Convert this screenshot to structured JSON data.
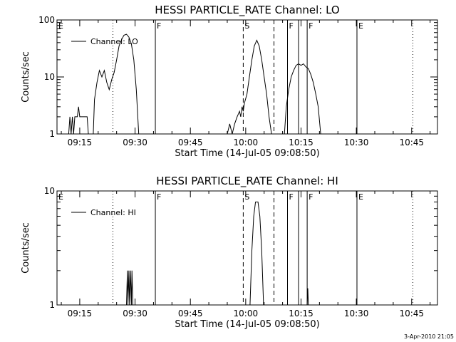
{
  "chart_data": [
    {
      "type": "line",
      "title": "HESSI PARTICLE_RATE Channel: LO",
      "xlabel": "Start Time (14-Jul-05 09:08:50)",
      "ylabel": "Counts/sec",
      "yscale": "log",
      "ylim": [
        1,
        100
      ],
      "yticks": [
        1,
        10,
        100
      ],
      "ytick_labels": [
        "1",
        "10",
        "100"
      ],
      "xlim": [
        "09:08:50",
        "10:52:00"
      ],
      "xticks": [
        "09:15",
        "09:30",
        "09:45",
        "10:00",
        "10:15",
        "10:30",
        "10:45"
      ],
      "legend": {
        "label": "Channel: LO",
        "placement": "top-left"
      },
      "series": [
        {
          "name": "Channel: LO",
          "segments": [
            [
              [
                "09:12:00",
                1
              ],
              [
                "09:12:20",
                2
              ],
              [
                "09:12:40",
                1
              ],
              [
                "09:13:00",
                2
              ],
              [
                "09:13:20",
                1
              ],
              [
                "09:13:40",
                2
              ],
              [
                "09:14:20",
                2
              ],
              [
                "09:14:40",
                3
              ],
              [
                "09:15:00",
                2
              ],
              [
                "09:16:00",
                2
              ],
              [
                "09:17:00",
                2
              ],
              [
                "09:17:20",
                1
              ]
            ],
            [
              [
                "09:18:40",
                1
              ],
              [
                "09:19:00",
                4
              ],
              [
                "09:19:40",
                8
              ],
              [
                "09:20:20",
                13
              ],
              [
                "09:21:00",
                10
              ],
              [
                "09:21:40",
                13
              ],
              [
                "09:22:20",
                8
              ],
              [
                "09:23:00",
                6
              ],
              [
                "09:23:40",
                9
              ],
              [
                "09:24:20",
                12
              ],
              [
                "09:25:00",
                20
              ],
              [
                "09:25:40",
                35
              ],
              [
                "09:26:20",
                45
              ],
              [
                "09:27:00",
                54
              ],
              [
                "09:27:40",
                56
              ],
              [
                "09:28:20",
                50
              ],
              [
                "09:29:00",
                38
              ],
              [
                "09:29:40",
                20
              ],
              [
                "09:30:20",
                6
              ],
              [
                "09:31:00",
                1
              ]
            ],
            [
              [
                "09:55:00",
                1
              ],
              [
                "09:55:40",
                1.5
              ],
              [
                "09:56:20",
                1
              ],
              [
                "09:57:00",
                1.5
              ],
              [
                "09:57:40",
                2
              ],
              [
                "09:58:20",
                2.5
              ],
              [
                "09:58:40",
                2
              ],
              [
                "09:59:00",
                3
              ],
              [
                "09:59:20",
                2.5
              ],
              [
                "09:59:40",
                3.5
              ],
              [
                "10:00:20",
                5
              ],
              [
                "10:01:00",
                10
              ],
              [
                "10:01:40",
                20
              ],
              [
                "10:02:20",
                35
              ],
              [
                "10:03:00",
                44
              ],
              [
                "10:03:40",
                35
              ],
              [
                "10:04:20",
                20
              ],
              [
                "10:05:00",
                10
              ],
              [
                "10:05:40",
                5
              ],
              [
                "10:06:20",
                2
              ],
              [
                "10:07:00",
                1
              ]
            ],
            [
              [
                "10:10:30",
                1
              ],
              [
                "10:11:00",
                3
              ],
              [
                "10:11:40",
                6
              ],
              [
                "10:12:20",
                10
              ],
              [
                "10:13:00",
                13
              ],
              [
                "10:13:40",
                16
              ],
              [
                "10:14:20",
                17
              ],
              [
                "10:15:00",
                16
              ],
              [
                "10:15:40",
                17
              ],
              [
                "10:16:20",
                15
              ],
              [
                "10:17:00",
                14
              ],
              [
                "10:17:40",
                11
              ],
              [
                "10:18:20",
                8
              ],
              [
                "10:19:00",
                5
              ],
              [
                "10:19:40",
                3
              ],
              [
                "10:20:20",
                1
              ]
            ]
          ]
        }
      ],
      "markers": [
        {
          "label": "E",
          "time": "09:08:50",
          "style": "none"
        },
        {
          "label": "",
          "time": "09:24:00",
          "style": "dotted"
        },
        {
          "label": "F",
          "time": "09:35:30",
          "style": "solid"
        },
        {
          "label": "S",
          "time": "09:59:20",
          "style": "dashed"
        },
        {
          "label": "",
          "time": "10:07:40",
          "style": "dashed"
        },
        {
          "label": "F",
          "time": "10:11:20",
          "style": "solid"
        },
        {
          "label": "",
          "time": "10:14:20",
          "style": "solid"
        },
        {
          "label": "F",
          "time": "10:16:40",
          "style": "solid"
        },
        {
          "label": "E",
          "time": "10:30:10",
          "style": "solid"
        },
        {
          "label": "",
          "time": "10:45:20",
          "style": "dotted"
        }
      ]
    },
    {
      "type": "line",
      "title": "HESSI PARTICLE_RATE Channel: HI",
      "xlabel": "Start Time (14-Jul-05 09:08:50)",
      "ylabel": "Counts/sec",
      "yscale": "log",
      "ylim": [
        1,
        10
      ],
      "yticks": [
        1,
        10
      ],
      "ytick_labels": [
        "1",
        "10"
      ],
      "xlim": [
        "09:08:50",
        "10:52:00"
      ],
      "xticks": [
        "09:15",
        "09:30",
        "09:45",
        "10:00",
        "10:15",
        "10:30",
        "10:45"
      ],
      "legend": {
        "label": "Channel: HI",
        "placement": "top-left"
      },
      "series": [
        {
          "name": "Channel: HI",
          "segments": [
            [
              [
                "09:27:40",
                1
              ],
              [
                "09:27:55",
                2
              ],
              [
                "09:28:05",
                1
              ],
              [
                "09:28:20",
                2
              ],
              [
                "09:28:30",
                1
              ],
              [
                "09:28:45",
                2
              ],
              [
                "09:29:00",
                1
              ],
              [
                "09:29:10",
                2
              ],
              [
                "09:29:25",
                1
              ]
            ],
            [
              [
                "10:01:10",
                1
              ],
              [
                "10:01:40",
                3
              ],
              [
                "10:02:10",
                6
              ],
              [
                "10:02:40",
                8
              ],
              [
                "10:03:20",
                8
              ],
              [
                "10:03:50",
                6
              ],
              [
                "10:04:20",
                3
              ],
              [
                "10:04:50",
                1
              ]
            ],
            [
              [
                "10:16:40",
                1
              ],
              [
                "10:16:50",
                1.4
              ],
              [
                "10:17:00",
                1
              ]
            ]
          ]
        }
      ],
      "markers": [
        {
          "label": "E",
          "time": "09:08:50",
          "style": "none"
        },
        {
          "label": "",
          "time": "09:24:00",
          "style": "dotted"
        },
        {
          "label": "F",
          "time": "09:35:30",
          "style": "solid"
        },
        {
          "label": "S",
          "time": "09:59:20",
          "style": "dashed"
        },
        {
          "label": "",
          "time": "10:07:40",
          "style": "dashed"
        },
        {
          "label": "F",
          "time": "10:11:20",
          "style": "solid"
        },
        {
          "label": "",
          "time": "10:14:20",
          "style": "solid"
        },
        {
          "label": "F",
          "time": "10:16:40",
          "style": "solid"
        },
        {
          "label": "E",
          "time": "10:30:10",
          "style": "solid"
        },
        {
          "label": "",
          "time": "10:45:20",
          "style": "dotted"
        }
      ]
    }
  ],
  "footer": {
    "timestamp": "3-Apr-2010 21:05"
  }
}
